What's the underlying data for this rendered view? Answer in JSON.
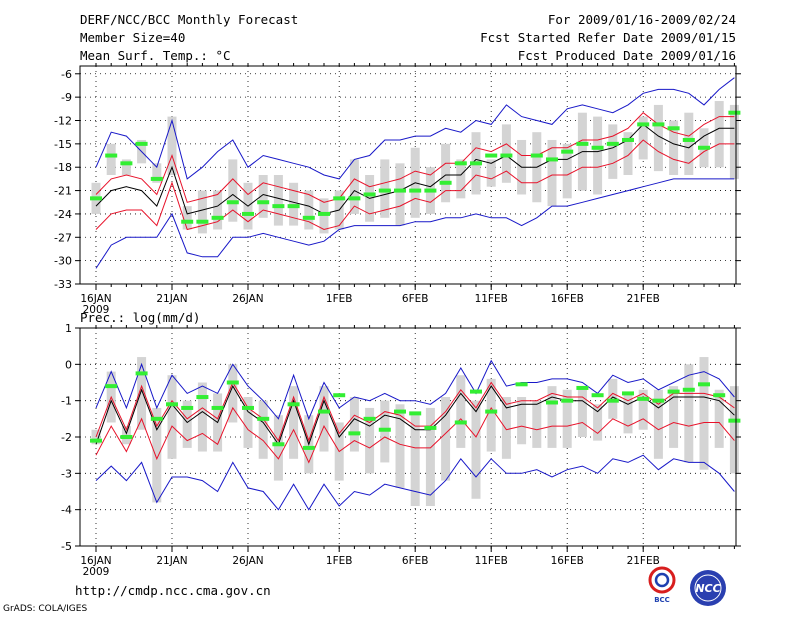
{
  "header": {
    "title": "DERF/NCC/BCC Monthly Forecast",
    "member": "Member Size=40",
    "variable": "Mean Surf. Temp.: °C",
    "period": "For 2009/01/16-2009/02/24",
    "refer": "Fcst Started Refer Date 2009/01/15",
    "produced": "Fcst Produced Date 2009/01/16"
  },
  "footer": {
    "url": "http://cmdp.ncc.cma.gov.cn",
    "grads": "GrADS: COLA/IGES",
    "bcc_logo": "BCC",
    "ncc_logo": "NCC"
  },
  "colors": {
    "box": "#d4d4d4",
    "median": "#000000",
    "spread": "#e8122a",
    "extreme": "#1818c8",
    "obs": "#33ee33"
  },
  "chart_data": [
    {
      "type": "line",
      "name": "Mean Surf. Temp.",
      "ylabel": "Mean Surf. Temp.: °C",
      "ylim": [
        -33,
        -5
      ],
      "yticks": [
        -6,
        -9,
        -12,
        -15,
        -18,
        -21,
        -24,
        -27,
        -30,
        -33
      ],
      "xtick_days": [
        0,
        5,
        10,
        16,
        21,
        26,
        31,
        36
      ],
      "xtick_labels": [
        "16JAN",
        "21JAN",
        "26JAN",
        "1FEB",
        "6FEB",
        "11FEB",
        "16FEB",
        "21FEB"
      ],
      "year_label": "2009",
      "grid": true,
      "median": [
        -23,
        -21,
        -20.5,
        -21,
        -23,
        -18,
        -24,
        -23.5,
        -23,
        -21.5,
        -23,
        -21.5,
        -22,
        -22.5,
        -23,
        -24,
        -23.5,
        -21,
        -22,
        -21.5,
        -21,
        -20,
        -20.5,
        -19,
        -19,
        -17,
        -17.5,
        -16.5,
        -18,
        -18,
        -17,
        -17,
        -16,
        -16,
        -15.5,
        -14.5,
        -12.5,
        -14,
        -15,
        -15.5,
        -14,
        -13,
        -13
      ],
      "red_upper": [
        -21.5,
        -19.5,
        -19,
        -19.5,
        -21.5,
        -16.5,
        -22.5,
        -22,
        -21.5,
        -19.5,
        -21.5,
        -20,
        -20.5,
        -21,
        -21.5,
        -22.5,
        -22,
        -19.5,
        -20.5,
        -20,
        -19.5,
        -18.5,
        -19,
        -17.5,
        -17.5,
        -15.5,
        -16,
        -15,
        -16.5,
        -16.5,
        -15.5,
        -15.5,
        -14.5,
        -14.5,
        -14,
        -13,
        -11,
        -12.5,
        -13.5,
        -14,
        -12.5,
        -11.5,
        -11.5
      ],
      "red_lower": [
        -26,
        -24,
        -23.5,
        -23.5,
        -25.5,
        -20,
        -26,
        -25.5,
        -25,
        -23.5,
        -25,
        -23.5,
        -24,
        -24.5,
        -25,
        -26,
        -25.5,
        -23,
        -24,
        -23.5,
        -23,
        -22,
        -22.5,
        -21,
        -21,
        -19,
        -19.5,
        -18.5,
        -20,
        -20,
        -19,
        -19,
        -18,
        -18,
        -17.5,
        -16.5,
        -14.5,
        -16,
        -17,
        -17.5,
        -16,
        -15,
        -15
      ],
      "blue_upper": [
        -18,
        -13.5,
        -14,
        -16,
        -18,
        -12,
        -19.5,
        -18,
        -16,
        -14.5,
        -18,
        -16.5,
        -17,
        -17.5,
        -18,
        -19,
        -19.5,
        -17,
        -16.5,
        -14.5,
        -14.5,
        -14,
        -14,
        -13,
        -13.5,
        -12,
        -12.5,
        -10,
        -11.5,
        -12,
        -12.5,
        -10.5,
        -10,
        -10.5,
        -11,
        -10,
        -8.5,
        -8,
        -8,
        -8.5,
        -10,
        -8,
        -6.5
      ],
      "blue_lower": [
        -31,
        -28,
        -27,
        -27,
        -27,
        -24,
        -29,
        -29.5,
        -29.5,
        -27,
        -27,
        -26.5,
        -27,
        -27.5,
        -28,
        -27.5,
        -26,
        -25.5,
        -25.5,
        -25.5,
        -25.5,
        -25,
        -25,
        -24.5,
        -24.5,
        -24,
        -24.5,
        -24.5,
        -25.5,
        -24.5,
        -23,
        -23,
        -22.5,
        -22,
        -21.5,
        -21,
        -20.5,
        -20,
        -19.5,
        -19.5,
        -19.5,
        -19.5,
        -19.5
      ],
      "box_top": [
        -20,
        -15,
        -17,
        -14.5,
        -17.5,
        -11.5,
        -23,
        -21,
        -21,
        -17,
        -20,
        -19,
        -19,
        -20,
        -21,
        -22,
        -21,
        -17,
        -19,
        -17,
        -17.5,
        -15.5,
        -18,
        -15,
        -17,
        -13.5,
        -17,
        -12.5,
        -14.5,
        -13.5,
        -14.5,
        -15,
        -11,
        -11.5,
        -12.5,
        -13.5,
        -11.5,
        -10,
        -12,
        -11,
        -13,
        -9.5,
        -10
      ],
      "box_bottom": [
        -24,
        -19,
        -19,
        -17.5,
        -20,
        -19,
        -26,
        -26.5,
        -26,
        -25,
        -26,
        -24.5,
        -25.5,
        -25.5,
        -26,
        -26.5,
        -26,
        -24,
        -25,
        -24.5,
        -25.5,
        -24.5,
        -24,
        -22.5,
        -22,
        -21.5,
        -20.5,
        -20,
        -21.5,
        -22.5,
        -23,
        -22,
        -21,
        -21.5,
        -19.5,
        -19,
        -17,
        -18.5,
        -19,
        -19,
        -18,
        -18,
        -19.5
      ],
      "obs_days": [
        0,
        1,
        2,
        3,
        4,
        6,
        7,
        8,
        9,
        10,
        11,
        12,
        13,
        14,
        15,
        16,
        17,
        18,
        19,
        20,
        21,
        22,
        23,
        24,
        25,
        26,
        27,
        29,
        30,
        31,
        32,
        33,
        34,
        35,
        36,
        37,
        38,
        39,
        40,
        42
      ],
      "obs_values": [
        -22,
        -16.5,
        -17.5,
        -15,
        -19.5,
        -25,
        -25,
        -24.5,
        -22.5,
        -24,
        -22.5,
        -23,
        -23,
        -24.5,
        -24,
        -22,
        -22,
        -21.5,
        -21,
        -21,
        -21,
        -21,
        -20,
        -17.5,
        -17.5,
        -16.5,
        -16.5,
        -16.5,
        -17,
        -16,
        -15,
        -15.5,
        -15,
        -14.5,
        -12.5,
        -12.5,
        -13,
        -14.5,
        -15.5,
        -11
      ]
    },
    {
      "type": "line",
      "name": "Precipitation",
      "ylabel": "Prec.: log(mm/d)",
      "ylim": [
        -5,
        1
      ],
      "yticks": [
        1,
        0,
        -1,
        -2,
        -3,
        -4,
        -5
      ],
      "xtick_days": [
        0,
        5,
        10,
        16,
        21,
        26,
        31,
        36
      ],
      "xtick_labels": [
        "16JAN",
        "21JAN",
        "26JAN",
        "1FEB",
        "6FEB",
        "11FEB",
        "16FEB",
        "21FEB"
      ],
      "year_label": "2009",
      "grid": true,
      "median": [
        -2.2,
        -1.0,
        -1.9,
        -0.7,
        -1.8,
        -1.1,
        -1.6,
        -1.3,
        -1.6,
        -0.6,
        -1.3,
        -1.6,
        -2.2,
        -1.0,
        -2.2,
        -1.0,
        -2.0,
        -1.5,
        -1.7,
        -1.4,
        -1.5,
        -1.8,
        -1.8,
        -1.4,
        -0.8,
        -1.3,
        -0.6,
        -1.2,
        -1.1,
        -1.1,
        -0.9,
        -1.0,
        -1.0,
        -1.3,
        -0.9,
        -1.1,
        -0.9,
        -1.2,
        -0.9,
        -0.9,
        -0.9,
        -1.0,
        -1.4
      ],
      "red_upper": [
        -2.0,
        -0.9,
        -1.8,
        -0.6,
        -1.7,
        -1.0,
        -1.5,
        -1.2,
        -1.5,
        -0.5,
        -1.2,
        -1.5,
        -2.1,
        -0.9,
        -2.1,
        -0.9,
        -1.9,
        -1.4,
        -1.6,
        -1.3,
        -1.4,
        -1.7,
        -1.7,
        -1.3,
        -0.7,
        -1.2,
        -0.5,
        -1.1,
        -1.0,
        -1.0,
        -0.8,
        -0.9,
        -0.9,
        -1.2,
        -0.8,
        -1.0,
        -0.8,
        -1.1,
        -0.8,
        -0.8,
        -0.8,
        -0.9,
        -1.2
      ],
      "red_lower": [
        -2.5,
        -1.7,
        -2.4,
        -1.5,
        -2.6,
        -1.7,
        -2.1,
        -1.9,
        -2.2,
        -1.2,
        -1.8,
        -2.1,
        -2.6,
        -1.8,
        -2.7,
        -1.7,
        -2.4,
        -2.1,
        -2.3,
        -2.0,
        -2.2,
        -2.3,
        -2.3,
        -1.9,
        -1.5,
        -2.0,
        -1.2,
        -1.8,
        -1.7,
        -1.8,
        -1.7,
        -1.7,
        -1.6,
        -1.9,
        -1.5,
        -1.7,
        -1.5,
        -1.8,
        -1.6,
        -1.7,
        -1.6,
        -1.6,
        -2.1
      ],
      "blue_upper": [
        -1.2,
        -0.2,
        -1.2,
        0.0,
        -1.2,
        -0.3,
        -0.8,
        -0.6,
        -0.8,
        0.0,
        -0.6,
        -1.0,
        -1.5,
        -0.3,
        -1.5,
        -0.5,
        -1.2,
        -0.9,
        -1.0,
        -0.8,
        -1.0,
        -1.0,
        -1.1,
        -0.8,
        -0.1,
        -0.8,
        0.1,
        -0.6,
        -0.5,
        -0.5,
        -0.4,
        -0.4,
        -0.5,
        -0.8,
        -0.3,
        -0.5,
        -0.4,
        -0.7,
        -0.5,
        -0.3,
        -0.2,
        -0.4,
        -0.9
      ],
      "blue_lower": [
        -3.2,
        -2.8,
        -3.2,
        -2.7,
        -3.8,
        -3.1,
        -3.1,
        -3.2,
        -3.5,
        -2.7,
        -3.4,
        -3.5,
        -4.0,
        -3.3,
        -4.0,
        -3.3,
        -3.9,
        -3.5,
        -3.6,
        -3.3,
        -3.4,
        -3.5,
        -3.6,
        -3.2,
        -2.6,
        -3.1,
        -2.6,
        -3.0,
        -3.0,
        -2.9,
        -3.1,
        -2.9,
        -2.8,
        -3.0,
        -2.6,
        -2.7,
        -2.5,
        -2.9,
        -2.6,
        -2.7,
        -2.7,
        -3.0,
        -3.5
      ],
      "box_top": [
        -1.8,
        -0.2,
        -1.7,
        0.2,
        -1.2,
        -0.3,
        -1.0,
        -0.5,
        -0.8,
        0.0,
        -0.9,
        -1.0,
        -1.4,
        -0.6,
        -1.4,
        -0.6,
        -1.6,
        -0.9,
        -1.2,
        -1.0,
        -1.1,
        -1.4,
        -1.2,
        -0.9,
        -0.3,
        -1.0,
        -0.4,
        -0.9,
        -0.9,
        -1.0,
        -0.6,
        -0.7,
        -0.7,
        -1.1,
        -0.4,
        -0.8,
        -0.7,
        -0.7,
        -0.6,
        0.0,
        0.2,
        -0.7,
        -0.6
      ],
      "box_bottom": [
        -2.2,
        -1.6,
        -2.2,
        -1.8,
        -3.8,
        -2.6,
        -2.3,
        -2.4,
        -2.4,
        -1.6,
        -2.3,
        -2.6,
        -3.2,
        -2.6,
        -3.0,
        -2.4,
        -3.2,
        -2.4,
        -3.0,
        -2.7,
        -3.4,
        -3.9,
        -3.9,
        -3.2,
        -2.3,
        -3.7,
        -2.4,
        -2.6,
        -2.2,
        -2.3,
        -2.3,
        -2.3,
        -2.0,
        -2.1,
        -1.5,
        -1.9,
        -1.8,
        -2.6,
        -2.3,
        -2.7,
        -2.9,
        -2.3,
        -3.0
      ],
      "obs_days": [
        0,
        1,
        2,
        3,
        4,
        5,
        6,
        7,
        8,
        9,
        10,
        11,
        12,
        13,
        14,
        15,
        16,
        17,
        18,
        19,
        20,
        21,
        22,
        24,
        25,
        26,
        28,
        30,
        31,
        32,
        33,
        34,
        35,
        36,
        37,
        38,
        39,
        40,
        41,
        42
      ],
      "obs_values": [
        -2.1,
        -0.6,
        -2.0,
        -0.25,
        -1.5,
        -1.1,
        -1.2,
        -0.9,
        -1.2,
        -0.5,
        -1.2,
        -1.5,
        -2.2,
        -1.1,
        -2.3,
        -1.3,
        -0.85,
        -1.9,
        -1.5,
        -1.8,
        -1.3,
        -1.35,
        -1.75,
        -1.6,
        -0.75,
        -1.3,
        -0.55,
        -1.05,
        -1.0,
        -0.65,
        -0.85,
        -1.0,
        -0.8,
        -0.95,
        -1.0,
        -0.75,
        -0.7,
        -0.55,
        -0.85,
        -1.55
      ]
    }
  ]
}
